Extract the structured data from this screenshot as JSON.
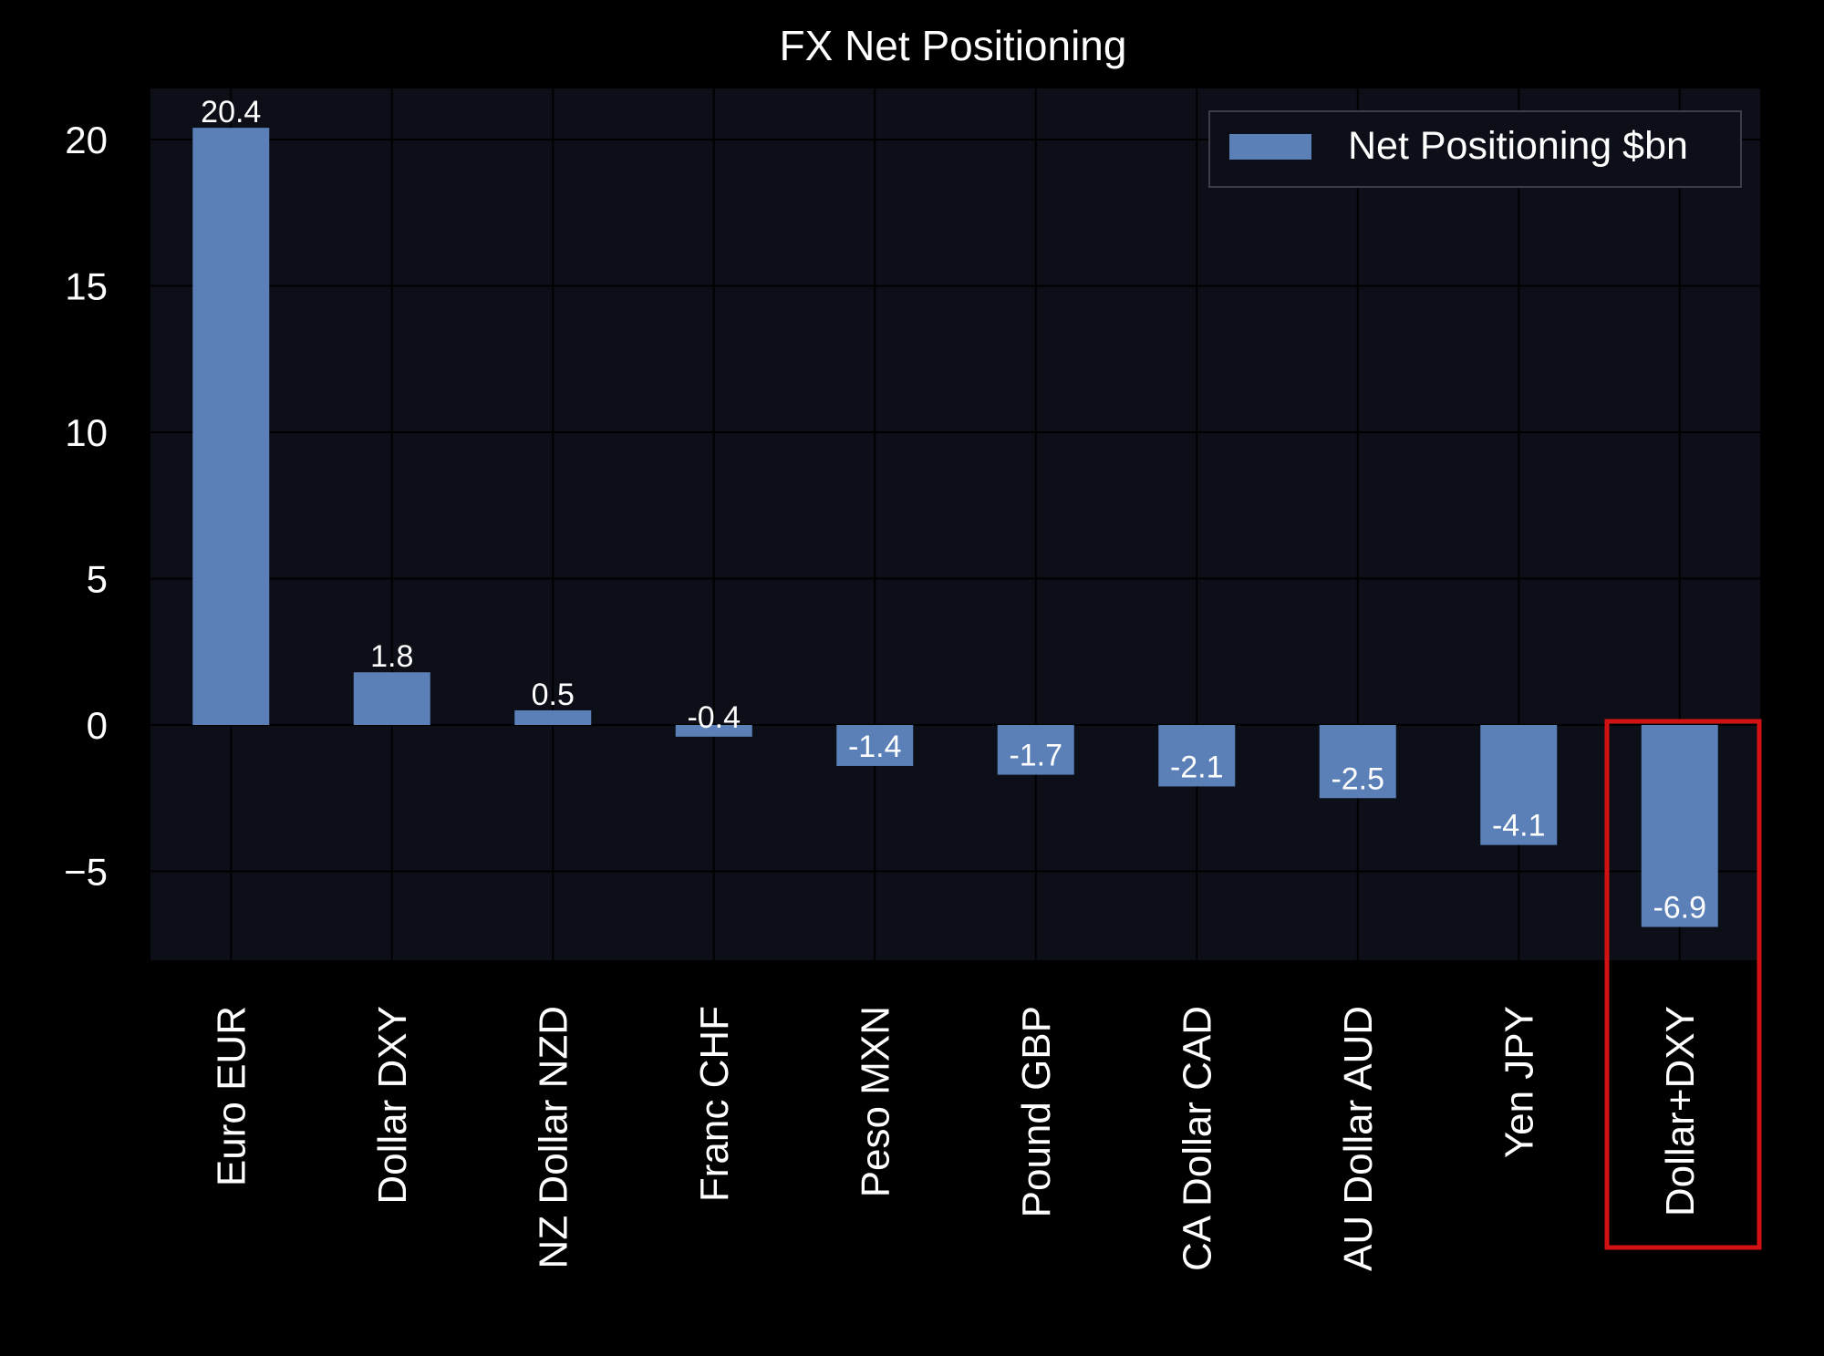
{
  "chart_data": {
    "type": "bar",
    "title": "FX Net Positioning",
    "xlabel": "",
    "ylabel": "",
    "categories": [
      "Euro EUR",
      "Dollar DXY",
      "NZ Dollar NZD",
      "Franc CHF",
      "Peso MXN",
      "Pound GBP",
      "CA Dollar CAD",
      "AU Dollar AUD",
      "Yen JPY",
      "Dollar+DXY"
    ],
    "series": [
      {
        "name": "Net Positioning $bn",
        "values": [
          20.4,
          1.8,
          0.5,
          -0.4,
          -1.4,
          -1.7,
          -2.1,
          -2.5,
          -4.1,
          -6.9
        ],
        "labels": [
          "20.4",
          "1.8",
          "0.5",
          "-0.4",
          "-1.4",
          "-1.7",
          "-2.1",
          "-2.5",
          "-4.1",
          "-6.9"
        ]
      }
    ],
    "ylim": [
      -8,
      22
    ],
    "yticks": [
      20,
      15,
      10,
      5,
      0,
      -5
    ],
    "ytick_labels": [
      "20",
      "15",
      "10",
      "5",
      "0",
      "−5"
    ],
    "grid": true,
    "legend": "top-right",
    "highlight": {
      "category": "Dollar+DXY",
      "color": "#d21212"
    },
    "colors": {
      "bar": "#5b80b8",
      "plot_bg": "#0d0f18",
      "page_bg": "#000000",
      "grid": "#000000",
      "text": "#ffffff"
    }
  }
}
